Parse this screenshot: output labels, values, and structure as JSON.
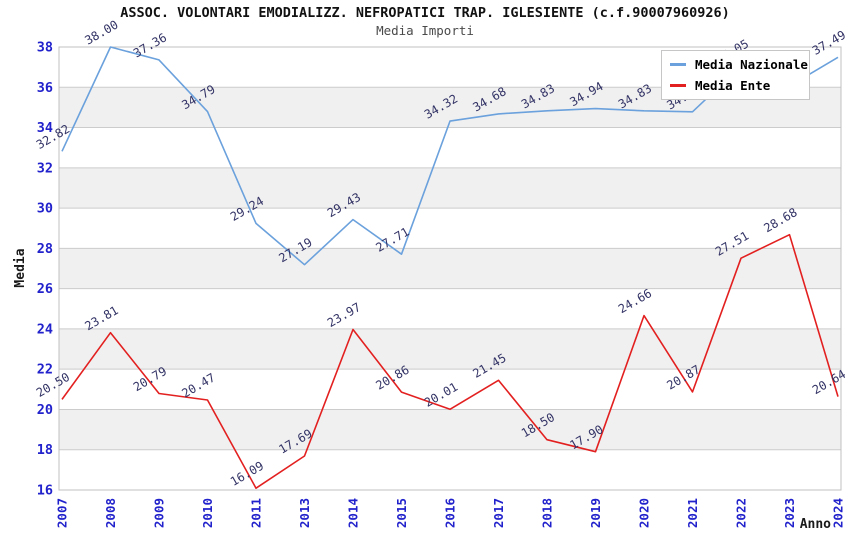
{
  "header": {
    "title": "ASSOC. VOLONTARI EMODIALIZZ. NEFROPATICI TRAP. IGLESIENTE (c.f.90007960926)",
    "subtitle": "Media Importi"
  },
  "axes": {
    "y_title": "Media",
    "x_title": "Anno",
    "tick_label_color": "#2222cc"
  },
  "legend": {
    "items": [
      {
        "label": "Media Nazionale"
      },
      {
        "label": "Media Ente"
      }
    ]
  },
  "chart_data": {
    "type": "line",
    "title": "ASSOC. VOLONTARI EMODIALIZZ. NEFROPATICI TRAP. IGLESIENTE (c.f.90007960926)",
    "subtitle": "Media Importi",
    "xlabel": "Anno",
    "ylabel": "Media",
    "categories": [
      "2007",
      "2008",
      "2009",
      "2010",
      "2011",
      "2013",
      "2014",
      "2015",
      "2016",
      "2017",
      "2018",
      "2019",
      "2020",
      "2021",
      "2022",
      "2023",
      "2024"
    ],
    "series": [
      {
        "name": "Media Nazionale",
        "color": "#6ba1dc",
        "values": [
          32.82,
          38.0,
          37.36,
          34.79,
          29.24,
          27.19,
          29.43,
          27.71,
          34.32,
          34.68,
          34.83,
          34.94,
          34.83,
          34.78,
          37.05,
          36.06,
          37.49
        ]
      },
      {
        "name": "Media Ente",
        "color": "#e32020",
        "values": [
          20.5,
          23.81,
          20.79,
          20.47,
          16.09,
          17.69,
          23.97,
          20.86,
          20.01,
          21.45,
          18.5,
          17.9,
          24.66,
          20.87,
          27.51,
          28.68,
          20.64
        ]
      }
    ],
    "ylim": [
      16,
      38
    ],
    "y_ticks": [
      16,
      18,
      20,
      22,
      24,
      26,
      28,
      30,
      32,
      34,
      36,
      38
    ],
    "grid": true,
    "band_color": "#f0f0f0",
    "grid_color": "#cccccc",
    "point_label_color": "#333366",
    "legend_position": "top-right"
  }
}
